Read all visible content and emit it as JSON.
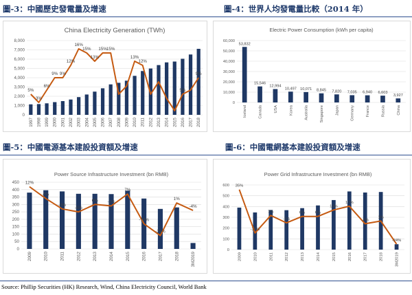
{
  "titles": {
    "fig3": "圖-3：中國歷史發電量及增速",
    "fig4": "圖-4：世界人均發電量比較（2014 年）",
    "fig5": "圖-5：中國電源基本建設投資額及增速",
    "fig6": "圖-6：中國電網基本建設投資額及增速"
  },
  "source": "Source: Phillip Securities (HK) Research, Wind, China Electricity Council, World Bank",
  "colors": {
    "bar": "#1f3864",
    "line": "#c55a11",
    "title": "#1f3a6b",
    "grid": "#d9d9d9",
    "text": "#595959"
  },
  "chart_data": [
    {
      "id": "chart1",
      "type": "bar",
      "title": "China Electricity Generation (TWh)",
      "categories": [
        "1997",
        "1998",
        "1999",
        "2000",
        "2001",
        "2002",
        "2003",
        "2004",
        "2005",
        "2006",
        "2007",
        "2008",
        "2009",
        "2010",
        "2011",
        "2012",
        "2013",
        "2014",
        "2015",
        "2016",
        "2017",
        "2018"
      ],
      "series": [
        {
          "name": "Generation (TWh)",
          "kind": "bar",
          "values": [
            1130,
            1160,
            1240,
            1370,
            1480,
            1650,
            1910,
            2190,
            2500,
            2860,
            3280,
            3450,
            3680,
            4200,
            4720,
            4990,
            5360,
            5650,
            5740,
            6040,
            6500,
            7110
          ]
        },
        {
          "name": "Growth",
          "kind": "line",
          "values": [
            5,
            3,
            6,
            9,
            9,
            12,
            16,
            15,
            13,
            15,
            15,
            5,
            7,
            13,
            12,
            5,
            8,
            4,
            1,
            5,
            6,
            9
          ]
        }
      ],
      "line_labels": [
        "5%",
        "3%",
        "6%",
        "9%",
        "9%",
        "12%",
        "16%",
        "15%",
        "13%",
        "15%",
        "15%",
        "",
        "",
        "13%",
        "12%",
        "",
        "",
        "",
        "",
        "5%",
        "",
        "9%"
      ],
      "ylim": [
        0,
        8000
      ],
      "yticks": [
        "0",
        "1,000",
        "2,000",
        "3,000",
        "4,000",
        "5,000",
        "6,000",
        "7,000",
        "8,000"
      ],
      "line_range": [
        0,
        18
      ]
    },
    {
      "id": "chart2",
      "type": "bar",
      "title": "Electric Power Consumption (kWh per capita)",
      "categories": [
        "Iceland",
        "Canada",
        "USA",
        "Korea",
        "Australia",
        "Singapore",
        "Japan",
        "Germany",
        "France",
        "Russia",
        "China"
      ],
      "values": [
        53832,
        15546,
        12994,
        10497,
        10071,
        8845,
        7820,
        7035,
        6940,
        6603,
        3927
      ],
      "labels": [
        "53,832",
        "15,546",
        "12,994",
        "10,497",
        "10,071",
        "8,845",
        "7,820",
        "7,035",
        "6,940",
        "6,603",
        "3,927"
      ],
      "ylim": [
        0,
        60000
      ],
      "yticks": [
        "0",
        "10,000",
        "20,000",
        "30,000",
        "40,000",
        "50,000",
        "60,000"
      ]
    },
    {
      "id": "chart3",
      "type": "bar",
      "title": "Power Source Infrastructure Investment (bn RMB)",
      "categories": [
        "2009",
        "2010",
        "2011",
        "2012",
        "2013",
        "2014",
        "2015",
        "2016",
        "2017",
        "2018",
        "3M2019"
      ],
      "series": [
        {
          "name": "Investment (bn RMB)",
          "kind": "bar",
          "values": [
            380,
            396,
            388,
            372,
            372,
            370,
            393,
            340,
            270,
            280,
            40
          ]
        },
        {
          "name": "Growth",
          "kind": "line",
          "values": [
            12,
            4,
            -3,
            -5,
            0,
            -1,
            7,
            -13,
            -21,
            1,
            -4
          ]
        }
      ],
      "line_labels": [
        "12%",
        "4%",
        "-3%",
        "-5%",
        "0%",
        "-1%",
        "7%",
        "-13%",
        "-21%",
        "1%",
        "-4%"
      ],
      "ylim": [
        0,
        450
      ],
      "yticks": [
        "0",
        "50",
        "100",
        "150",
        "200",
        "250",
        "300",
        "350",
        "400",
        "450"
      ],
      "line_range": [
        -30,
        15
      ]
    },
    {
      "id": "chart4",
      "type": "bar",
      "title": "Power Grid Infrastructure Investment (bn RMB)",
      "categories": [
        "2009",
        "2010",
        "2011",
        "2012",
        "2013",
        "2014",
        "2015",
        "2016",
        "2017",
        "2018",
        "3M2019"
      ],
      "series": [
        {
          "name": "Investment (bn RMB)",
          "kind": "bar",
          "values": [
            390,
            345,
            368,
            366,
            385,
            410,
            460,
            540,
            530,
            535,
            50
          ]
        },
        {
          "name": "Growth",
          "kind": "line",
          "values": [
            35,
            -12,
            7,
            -1,
            6,
            6,
            13,
            17,
            -2,
            1,
            -24
          ]
        }
      ],
      "line_labels": [
        "35%",
        "-12%",
        "7%",
        "-1%",
        "6%",
        "6%",
        "13%",
        "17%",
        "-2%",
        "1%",
        "-24%"
      ],
      "ylim": [
        0,
        600
      ],
      "yticks": [
        "0",
        "100",
        "200",
        "300",
        "400",
        "500",
        "600"
      ],
      "line_range": [
        -30,
        40
      ]
    }
  ]
}
